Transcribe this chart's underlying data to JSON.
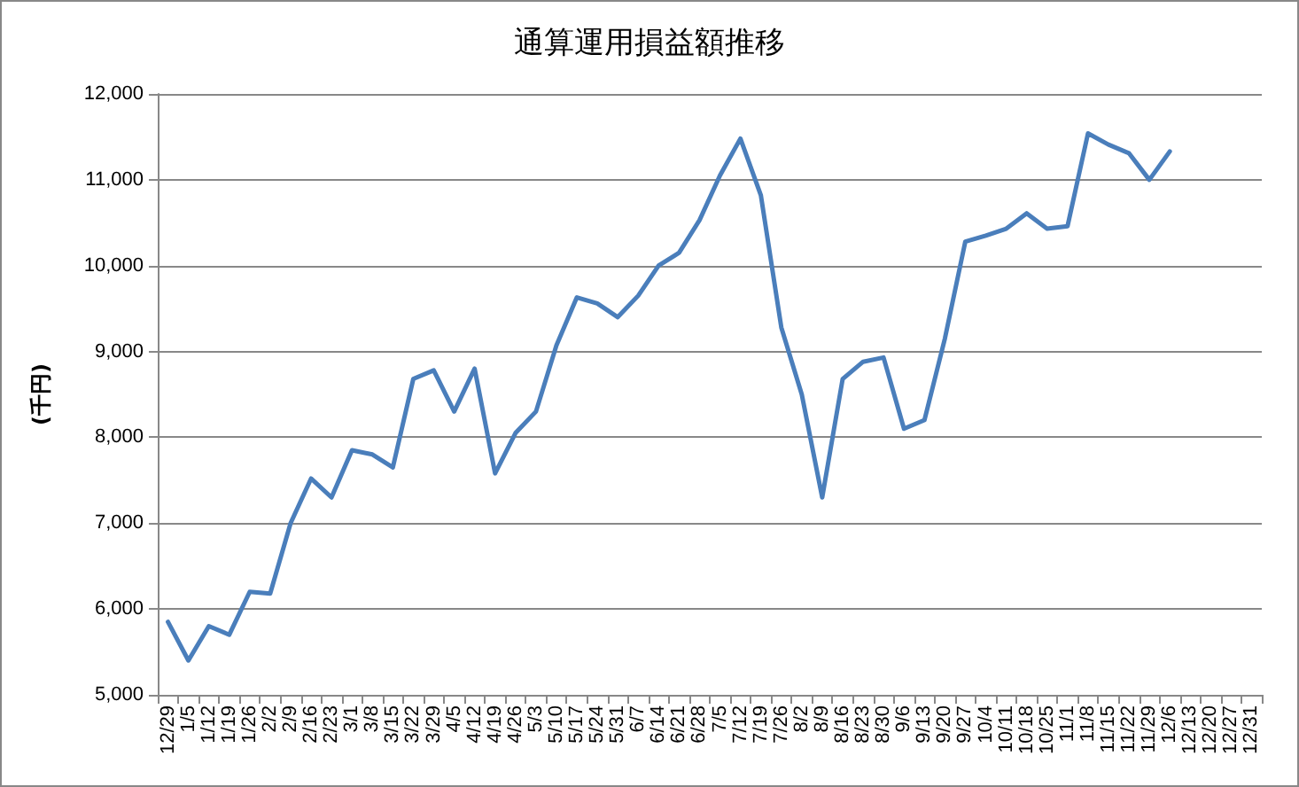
{
  "chart_data": {
    "type": "line",
    "title": "通算運用損益額推移",
    "ylabel": "(千円)",
    "categories": [
      "12/29",
      "1/5",
      "1/12",
      "1/19",
      "1/26",
      "2/2",
      "2/9",
      "2/16",
      "2/23",
      "3/1",
      "3/8",
      "3/15",
      "3/22",
      "3/29",
      "4/5",
      "4/12",
      "4/19",
      "4/26",
      "5/3",
      "5/10",
      "5/17",
      "5/24",
      "5/31",
      "6/7",
      "6/14",
      "6/21",
      "6/28",
      "7/5",
      "7/12",
      "7/19",
      "7/26",
      "8/2",
      "8/9",
      "8/16",
      "8/23",
      "8/30",
      "9/6",
      "9/13",
      "9/20",
      "9/27",
      "10/4",
      "10/11",
      "10/18",
      "10/25",
      "11/1",
      "11/8",
      "11/15",
      "11/22",
      "11/29",
      "12/6",
      "12/13",
      "12/20",
      "12/27",
      "12/31"
    ],
    "series": [
      {
        "color": "#4a7ebb",
        "values": [
          5850,
          5400,
          5800,
          5700,
          6200,
          6180,
          7000,
          7520,
          7300,
          7850,
          7800,
          7650,
          8680,
          8780,
          8300,
          8800,
          7580,
          8050,
          8300,
          9070,
          9630,
          9560,
          9400,
          9650,
          10000,
          10150,
          10530,
          11050,
          11480,
          10820,
          9280,
          8500,
          7300,
          8680,
          8880,
          8930,
          8100,
          8200,
          9150,
          10280,
          10350,
          10430,
          10610,
          10430,
          10460,
          11540,
          11410,
          11310,
          11000,
          11330,
          null,
          null,
          null,
          null
        ]
      }
    ],
    "ylim": [
      5000,
      12000
    ],
    "yticks": [
      {
        "value": 5000,
        "label": "5,000"
      },
      {
        "value": 6000,
        "label": "6,000"
      },
      {
        "value": 7000,
        "label": "7,000"
      },
      {
        "value": 8000,
        "label": "8,000"
      },
      {
        "value": 9000,
        "label": "9,000"
      },
      {
        "value": 10000,
        "label": "10,000"
      },
      {
        "value": 11000,
        "label": "11,000"
      },
      {
        "value": 12000,
        "label": "12,000"
      }
    ],
    "grid": "y",
    "marker": "none",
    "line_style": "solid"
  }
}
